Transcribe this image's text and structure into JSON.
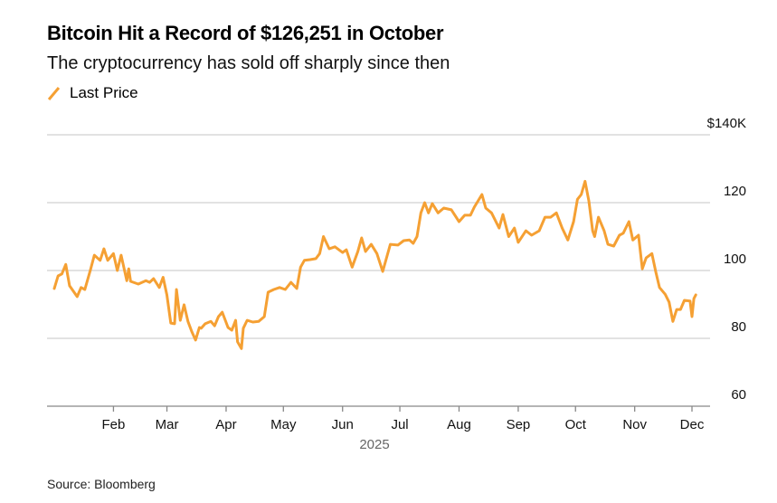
{
  "title": "Bitcoin Hit a Record of $126,251 in October",
  "subtitle": "The cryptocurrency has sold off sharply since then",
  "source": "Source: Bloomberg",
  "chart_data": {
    "type": "line",
    "title": "Bitcoin Hit a Record of $126,251 in October",
    "subtitle": "The cryptocurrency has sold off sharply since then",
    "xlabel": "2025",
    "ylabel": "",
    "ylim": [
      60,
      140
    ],
    "yticks": [
      {
        "v": 140,
        "label": "$140K"
      },
      {
        "v": 120,
        "label": "120"
      },
      {
        "v": 100,
        "label": "100"
      },
      {
        "v": 80,
        "label": "80"
      },
      {
        "v": 60,
        "label": "60"
      }
    ],
    "xticks": [
      "Feb",
      "Mar",
      "Apr",
      "May",
      "Jun",
      "Jul",
      "Aug",
      "Sep",
      "Oct",
      "Nov",
      "Dec"
    ],
    "grid": true,
    "legend_position": "top-left",
    "color": "#f5a033",
    "series": [
      {
        "name": "Last Price",
        "points": [
          [
            "2025-01-01",
            94.7
          ],
          [
            "2025-01-03",
            98.4
          ],
          [
            "2025-01-05",
            99
          ],
          [
            "2025-01-07",
            101.8
          ],
          [
            "2025-01-09",
            95.5
          ],
          [
            "2025-01-13",
            92.3
          ],
          [
            "2025-01-15",
            95
          ],
          [
            "2025-01-17",
            94.4
          ],
          [
            "2025-01-20",
            100.3
          ],
          [
            "2025-01-22",
            104.5
          ],
          [
            "2025-01-25",
            103
          ],
          [
            "2025-01-27",
            106.4
          ],
          [
            "2025-01-29",
            103
          ],
          [
            "2025-02-01",
            105
          ],
          [
            "2025-02-03",
            100
          ],
          [
            "2025-02-05",
            104.5
          ],
          [
            "2025-02-08",
            97
          ],
          [
            "2025-02-09",
            100.5
          ],
          [
            "2025-02-10",
            96.8
          ],
          [
            "2025-02-14",
            96
          ],
          [
            "2025-02-18",
            97
          ],
          [
            "2025-02-20",
            96.5
          ],
          [
            "2025-02-22",
            97.6
          ],
          [
            "2025-02-25",
            95
          ],
          [
            "2025-02-27",
            98
          ],
          [
            "2025-03-01",
            92.8
          ],
          [
            "2025-03-03",
            84.5
          ],
          [
            "2025-03-05",
            84.3
          ],
          [
            "2025-03-06",
            94.4
          ],
          [
            "2025-03-08",
            85.3
          ],
          [
            "2025-03-10",
            89.9
          ],
          [
            "2025-03-12",
            85
          ],
          [
            "2025-03-14",
            82
          ],
          [
            "2025-03-16",
            79.5
          ],
          [
            "2025-03-18",
            83.2
          ],
          [
            "2025-03-19",
            83
          ],
          [
            "2025-03-21",
            84.3
          ],
          [
            "2025-03-24",
            85
          ],
          [
            "2025-03-26",
            83.7
          ],
          [
            "2025-03-28",
            86.4
          ],
          [
            "2025-03-30",
            87.7
          ],
          [
            "2025-04-02",
            83.2
          ],
          [
            "2025-04-04",
            82.4
          ],
          [
            "2025-04-06",
            85.3
          ],
          [
            "2025-04-07",
            79
          ],
          [
            "2025-04-09",
            77
          ],
          [
            "2025-04-10",
            83
          ],
          [
            "2025-04-12",
            85.3
          ],
          [
            "2025-04-15",
            84.8
          ],
          [
            "2025-04-18",
            85
          ],
          [
            "2025-04-21",
            86.4
          ],
          [
            "2025-04-23",
            93.6
          ],
          [
            "2025-04-26",
            94.4
          ],
          [
            "2025-04-29",
            95
          ],
          [
            "2025-05-02",
            94.4
          ],
          [
            "2025-05-05",
            96.5
          ],
          [
            "2025-05-08",
            94.7
          ],
          [
            "2025-05-10",
            101
          ],
          [
            "2025-05-12",
            103
          ],
          [
            "2025-05-15",
            103.2
          ],
          [
            "2025-05-18",
            103.5
          ],
          [
            "2025-05-20",
            105
          ],
          [
            "2025-05-22",
            110
          ],
          [
            "2025-05-25",
            106.4
          ],
          [
            "2025-05-28",
            107
          ],
          [
            "2025-06-01",
            105.3
          ],
          [
            "2025-06-03",
            106.1
          ],
          [
            "2025-06-06",
            101
          ],
          [
            "2025-06-09",
            105.6
          ],
          [
            "2025-06-11",
            109.6
          ],
          [
            "2025-06-13",
            105.6
          ],
          [
            "2025-06-16",
            107.7
          ],
          [
            "2025-06-19",
            105
          ],
          [
            "2025-06-22",
            99.7
          ],
          [
            "2025-06-24",
            103.7
          ],
          [
            "2025-06-26",
            107.7
          ],
          [
            "2025-06-30",
            107.5
          ],
          [
            "2025-07-03",
            108.8
          ],
          [
            "2025-07-06",
            109
          ],
          [
            "2025-07-08",
            108
          ],
          [
            "2025-07-10",
            110
          ],
          [
            "2025-07-12",
            117
          ],
          [
            "2025-07-14",
            120
          ],
          [
            "2025-07-16",
            117
          ],
          [
            "2025-07-18",
            119.7
          ],
          [
            "2025-07-21",
            117
          ],
          [
            "2025-07-24",
            118.4
          ],
          [
            "2025-07-28",
            117.9
          ],
          [
            "2025-08-01",
            114.4
          ],
          [
            "2025-08-04",
            116.3
          ],
          [
            "2025-08-07",
            116.3
          ],
          [
            "2025-08-09",
            118.7
          ],
          [
            "2025-08-13",
            122.4
          ],
          [
            "2025-08-15",
            118.4
          ],
          [
            "2025-08-18",
            117
          ],
          [
            "2025-08-22",
            112.5
          ],
          [
            "2025-08-24",
            116.5
          ],
          [
            "2025-08-27",
            110
          ],
          [
            "2025-08-30",
            112.5
          ],
          [
            "2025-09-01",
            108.3
          ],
          [
            "2025-09-05",
            111.7
          ],
          [
            "2025-09-08",
            110.4
          ],
          [
            "2025-09-12",
            111.7
          ],
          [
            "2025-09-15",
            115.7
          ],
          [
            "2025-09-18",
            115.7
          ],
          [
            "2025-09-21",
            117
          ],
          [
            "2025-09-24",
            112.5
          ],
          [
            "2025-09-27",
            109
          ],
          [
            "2025-09-30",
            114.4
          ],
          [
            "2025-10-02",
            121
          ],
          [
            "2025-10-04",
            122.4
          ],
          [
            "2025-10-06",
            126.3
          ],
          [
            "2025-10-08",
            120.5
          ],
          [
            "2025-10-10",
            111.7
          ],
          [
            "2025-10-11",
            110
          ],
          [
            "2025-10-13",
            115.7
          ],
          [
            "2025-10-16",
            111.7
          ],
          [
            "2025-10-18",
            107.7
          ],
          [
            "2025-10-21",
            107.2
          ],
          [
            "2025-10-24",
            110.4
          ],
          [
            "2025-10-26",
            111
          ],
          [
            "2025-10-29",
            114.4
          ],
          [
            "2025-10-31",
            109
          ],
          [
            "2025-11-03",
            110.4
          ],
          [
            "2025-11-05",
            100.5
          ],
          [
            "2025-11-07",
            103.7
          ],
          [
            "2025-11-10",
            105
          ],
          [
            "2025-11-12",
            99.7
          ],
          [
            "2025-11-14",
            95
          ],
          [
            "2025-11-17",
            93
          ],
          [
            "2025-11-19",
            90.7
          ],
          [
            "2025-11-21",
            85
          ],
          [
            "2025-11-23",
            88.5
          ],
          [
            "2025-11-25",
            88.5
          ],
          [
            "2025-11-27",
            91.2
          ],
          [
            "2025-11-30",
            91
          ],
          [
            "2025-12-01",
            86.4
          ],
          [
            "2025-12-02",
            91.7
          ],
          [
            "2025-12-03",
            92.8
          ]
        ]
      }
    ]
  }
}
